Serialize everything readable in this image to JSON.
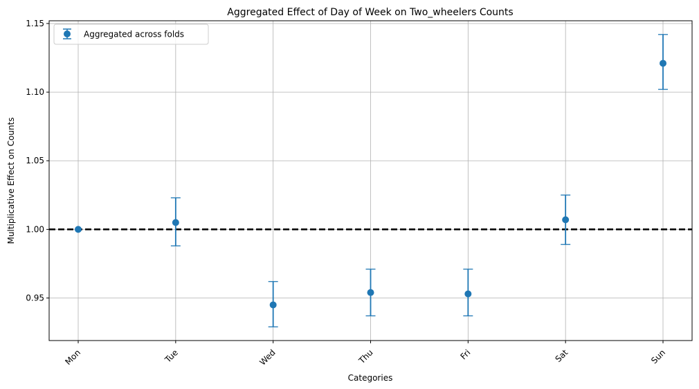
{
  "chart_data": {
    "type": "scatter",
    "title": "Aggregated Effect of Day of Week on Two_wheelers Counts",
    "xlabel": "Categories",
    "ylabel": "Multiplicative Effect on Counts",
    "categories": [
      "Mon",
      "Tue",
      "Wed",
      "Thu",
      "Fri",
      "Sat",
      "Sun"
    ],
    "series": [
      {
        "name": "Aggregated across folds",
        "values": [
          1.0,
          1.005,
          0.945,
          0.954,
          0.953,
          1.007,
          1.121
        ],
        "err_low": [
          1.0,
          0.988,
          0.929,
          0.937,
          0.937,
          0.989,
          1.102
        ],
        "err_high": [
          1.0,
          1.023,
          0.962,
          0.971,
          0.971,
          1.025,
          1.142
        ]
      }
    ],
    "reference_line": 1.0,
    "ylim": [
      0.919,
      1.152
    ],
    "yticks": [
      0.95,
      1.0,
      1.05,
      1.1,
      1.15
    ],
    "ytick_labels": [
      "0.95",
      "1.00",
      "1.05",
      "1.10",
      "1.15"
    ],
    "grid": true,
    "legend_position": "upper-left",
    "colors": {
      "series": "#1f77b4",
      "reference": "#000000",
      "grid": "#b0b0b0"
    }
  }
}
